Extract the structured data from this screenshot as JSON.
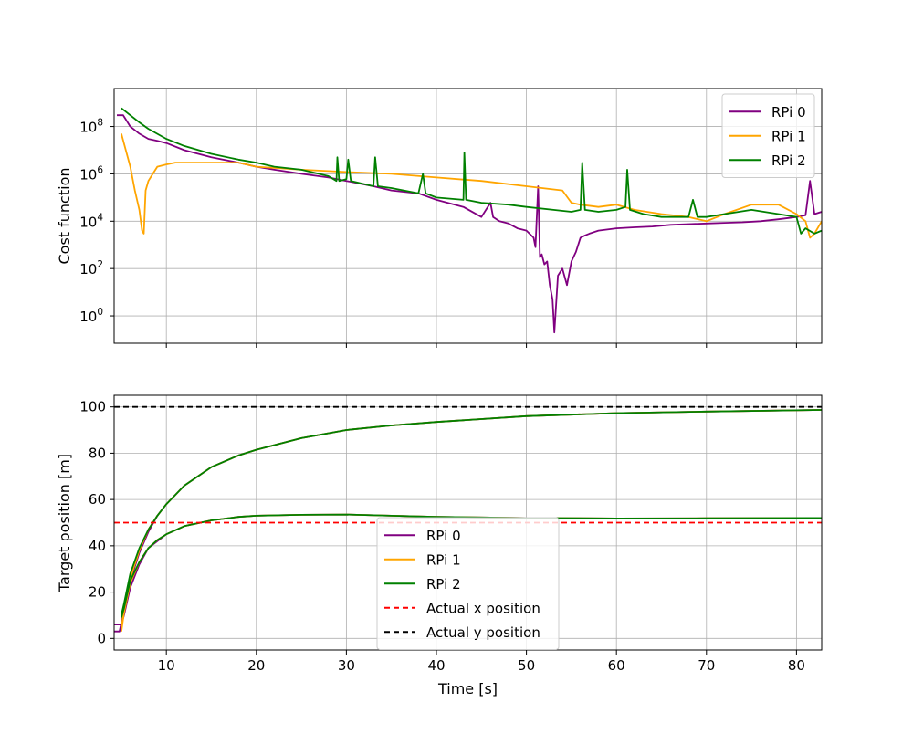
{
  "chart_data": [
    {
      "type": "line",
      "ylabel": "Cost function",
      "xlabel": "",
      "yscale": "log",
      "xlim": [
        4.2,
        82.8
      ],
      "ylim": [
        0.07,
        4000000000
      ],
      "grid": true,
      "legend": "top-right",
      "x_ticks": [
        10,
        20,
        30,
        40,
        50,
        60,
        70,
        80
      ],
      "x_tick_labels_visible": false,
      "y_ticks": [
        {
          "value": 1,
          "base": "10",
          "exp": "0"
        },
        {
          "value": 100,
          "base": "10",
          "exp": "2"
        },
        {
          "value": 10000,
          "base": "10",
          "exp": "4"
        },
        {
          "value": 1000000,
          "base": "10",
          "exp": "6"
        },
        {
          "value": 100000000,
          "base": "10",
          "exp": "8"
        }
      ],
      "series": [
        {
          "name": "RPi 0",
          "color": "#800080",
          "style": "solid",
          "x": [
            4.5,
            5.2,
            6,
            7,
            8,
            9,
            10,
            12,
            15,
            18,
            20,
            22,
            25,
            28,
            30,
            33,
            35,
            38,
            40,
            43,
            45,
            46,
            46.3,
            47,
            48,
            49,
            50,
            50.8,
            51,
            51.3,
            51.5,
            51.7,
            52,
            52.3,
            52.6,
            52.9,
            53.1,
            53.5,
            54,
            54.5,
            55,
            55.5,
            56,
            56.5,
            57,
            58,
            60,
            62,
            64,
            66,
            68,
            70,
            72,
            74,
            76,
            78,
            80,
            81,
            81.5,
            82,
            82.8
          ],
          "y": [
            300000000,
            300000000,
            100000000,
            50000000,
            30000000,
            25000000,
            20000000,
            10000000,
            5000000,
            3000000,
            2000000,
            1500000,
            1000000,
            700000,
            500000,
            300000,
            200000,
            150000,
            80000,
            40000,
            15000,
            60000,
            15000,
            10000,
            8000,
            5000,
            4000,
            2000,
            800,
            300000,
            300,
            400,
            150,
            200,
            20,
            5,
            0.2,
            50,
            100,
            20,
            200,
            500,
            2000,
            2500,
            3000,
            4000,
            5000,
            5500,
            6000,
            7000,
            7500,
            8000,
            8500,
            9000,
            10000,
            12000,
            15000,
            18000,
            500000,
            20000,
            25000
          ]
        },
        {
          "name": "RPi 1",
          "color": "#FFA500",
          "style": "solid",
          "x": [
            5,
            5.5,
            6,
            6.5,
            7,
            7.3,
            7.5,
            7.7,
            8,
            8.5,
            9,
            10,
            11,
            12,
            13,
            15,
            18,
            20,
            25,
            30,
            35,
            40,
            45,
            50,
            54,
            55,
            56,
            58,
            60,
            62,
            65,
            68,
            70,
            72,
            75,
            78,
            80,
            81,
            81.5,
            82,
            82.8
          ],
          "y": [
            50000000,
            10000000,
            2000000,
            200000,
            30000,
            4000,
            3000,
            200000,
            500000,
            1000000,
            2000000,
            2500000,
            3000000,
            3000000,
            3000000,
            3000000,
            3000000,
            2000000,
            1500000,
            1200000,
            1000000,
            700000,
            500000,
            300000,
            200000,
            60000,
            50000,
            40000,
            50000,
            30000,
            20000,
            15000,
            10000,
            20000,
            50000,
            50000,
            20000,
            10000,
            2000,
            3000,
            10000
          ]
        },
        {
          "name": "RPi 2",
          "color": "#008000",
          "style": "solid",
          "x": [
            5,
            6,
            7,
            8,
            10,
            12,
            15,
            18,
            20,
            22,
            25,
            28,
            28.9,
            29,
            29.2,
            30,
            30.2,
            30.5,
            33,
            33.2,
            33.5,
            35,
            38,
            38.5,
            38.8,
            40,
            43,
            43.1,
            43.3,
            45,
            48,
            50,
            53,
            55,
            56,
            56.2,
            56.5,
            58,
            60,
            61,
            61.2,
            61.5,
            63,
            65,
            68,
            68.5,
            69,
            70,
            72,
            75,
            78,
            80,
            80.5,
            81,
            82,
            82.8
          ],
          "y": [
            600000000,
            300000000,
            150000000,
            80000000,
            30000000,
            15000000,
            7000000,
            4000000,
            3000000,
            2000000,
            1500000,
            800000,
            500000,
            5000000,
            500000,
            600000,
            4000000,
            500000,
            300000,
            5000000,
            300000,
            250000,
            150000,
            1000000,
            150000,
            100000,
            80000,
            8000000,
            80000,
            60000,
            50000,
            40000,
            30000,
            25000,
            30000,
            3000000,
            30000,
            25000,
            30000,
            40000,
            1500000,
            30000,
            20000,
            15000,
            15000,
            80000,
            15000,
            15000,
            20000,
            30000,
            20000,
            15000,
            3000,
            5000,
            3000,
            4000
          ]
        }
      ]
    },
    {
      "type": "line",
      "xlabel": "Time [s]",
      "ylabel": "Target position [m]",
      "xlim": [
        4.2,
        82.8
      ],
      "ylim": [
        -5,
        105
      ],
      "grid": true,
      "legend": "lower-center",
      "x_ticks": [
        10,
        20,
        30,
        40,
        50,
        60,
        70,
        80
      ],
      "y_ticks": [
        0,
        20,
        40,
        60,
        80,
        100
      ],
      "series": [
        {
          "name": "RPi 0",
          "color": "#800080",
          "style": "solid",
          "x": [
            4.2,
            5,
            5.3,
            6,
            7,
            8,
            9,
            10,
            12,
            15,
            18,
            20,
            25,
            30,
            35,
            40,
            50,
            60,
            70,
            82.8
          ],
          "y": [
            6,
            6,
            10,
            22,
            32,
            39,
            42,
            45,
            48.5,
            51,
            52.5,
            53,
            53.4,
            53.5,
            53,
            52.5,
            52,
            51.8,
            51.9,
            52
          ]
        },
        {
          "name": "RPi 0",
          "color": "#800080",
          "style": "solid",
          "x": [
            4.2,
            4.8,
            5.3,
            6,
            7,
            8,
            9,
            10,
            12,
            15,
            18,
            20,
            25,
            30,
            35,
            40,
            50,
            60,
            70,
            82.8
          ],
          "y": [
            3,
            3,
            12,
            25,
            37,
            46,
            53,
            58,
            66,
            74,
            79,
            81.5,
            86.5,
            90,
            92,
            93.5,
            96,
            97.3,
            98,
            98.7
          ]
        },
        {
          "name": "RPi 1",
          "color": "#FFA500",
          "style": "solid",
          "x": [
            5,
            5.3,
            6,
            7,
            8,
            9,
            10,
            12,
            15,
            18,
            20,
            25,
            30,
            35,
            40,
            50,
            60,
            70,
            82.8
          ],
          "y": [
            3,
            11,
            24,
            33,
            39,
            42.5,
            45,
            48.5,
            51,
            52.5,
            53,
            53.4,
            53.5,
            53,
            52.5,
            52,
            51.8,
            51.9,
            52
          ]
        },
        {
          "name": "RPi 1",
          "color": "#FFA500",
          "style": "solid",
          "x": [
            5,
            5.3,
            6,
            7,
            8,
            9,
            10,
            12,
            15,
            18,
            20,
            25,
            30,
            35,
            40,
            50,
            60,
            70,
            82.8
          ],
          "y": [
            4,
            13,
            26,
            38,
            47,
            53,
            58,
            66,
            74,
            79,
            81.5,
            86.5,
            90,
            92,
            93.5,
            96,
            97.3,
            98,
            98.7
          ]
        },
        {
          "name": "RPi 2",
          "color": "#008000",
          "style": "solid",
          "x": [
            5,
            5.3,
            6,
            7,
            8,
            9,
            10,
            12,
            15,
            18,
            20,
            25,
            30,
            35,
            40,
            50,
            60,
            70,
            82.8
          ],
          "y": [
            9,
            13,
            25,
            33,
            39,
            42.5,
            45,
            48.5,
            51,
            52.5,
            53,
            53.4,
            53.5,
            53,
            52.5,
            52,
            51.8,
            51.9,
            52
          ]
        },
        {
          "name": "RPi 2",
          "color": "#008000",
          "style": "solid",
          "x": [
            5,
            5.3,
            6,
            7,
            8,
            9,
            10,
            12,
            15,
            18,
            20,
            25,
            30,
            35,
            40,
            50,
            60,
            70,
            82.8
          ],
          "y": [
            10,
            15,
            28,
            39,
            47,
            53,
            58,
            66,
            74,
            79,
            81.5,
            86.5,
            90,
            92,
            93.5,
            96,
            97.3,
            98,
            98.7
          ]
        },
        {
          "name": "Actual x position",
          "color": "#FF0000",
          "style": "dashed",
          "x": [
            4.2,
            82.8
          ],
          "y": [
            50,
            50
          ]
        },
        {
          "name": "Actual y position",
          "color": "#000000",
          "style": "dashed",
          "x": [
            4.2,
            82.8
          ],
          "y": [
            100,
            100
          ]
        }
      ]
    }
  ]
}
